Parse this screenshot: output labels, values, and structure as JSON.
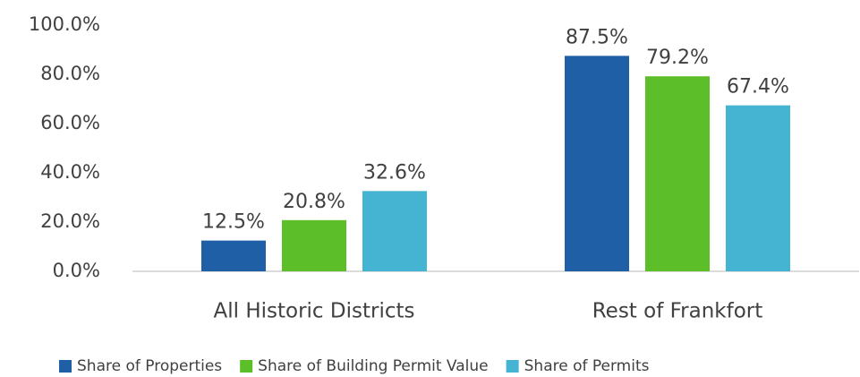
{
  "chart_data": {
    "type": "bar",
    "categories": [
      "All Historic Districts",
      "Rest of Frankfort"
    ],
    "series": [
      {
        "name": "Share of Properties",
        "color": "#1f5fa6",
        "values": [
          12.5,
          87.5
        ],
        "value_labels": [
          "12.5%",
          "87.5%"
        ]
      },
      {
        "name": "Share of Building Permit Value",
        "color": "#5cbf2a",
        "values": [
          20.8,
          79.2
        ],
        "value_labels": [
          "20.8%",
          "79.2%"
        ]
      },
      {
        "name": "Share of Permits",
        "color": "#45b4d3",
        "values": [
          32.6,
          67.4
        ],
        "value_labels": [
          "32.6%",
          "67.4%"
        ]
      }
    ],
    "ylim": [
      0,
      100
    ],
    "yticks": [
      {
        "value": 0,
        "label": "0.0%"
      },
      {
        "value": 20,
        "label": "20.0%"
      },
      {
        "value": 40,
        "label": "40.0%"
      },
      {
        "value": 60,
        "label": "60.0%"
      },
      {
        "value": 80,
        "label": "80.0%"
      },
      {
        "value": 100,
        "label": "100.0%"
      }
    ],
    "grid": false,
    "legend": "bottom"
  }
}
